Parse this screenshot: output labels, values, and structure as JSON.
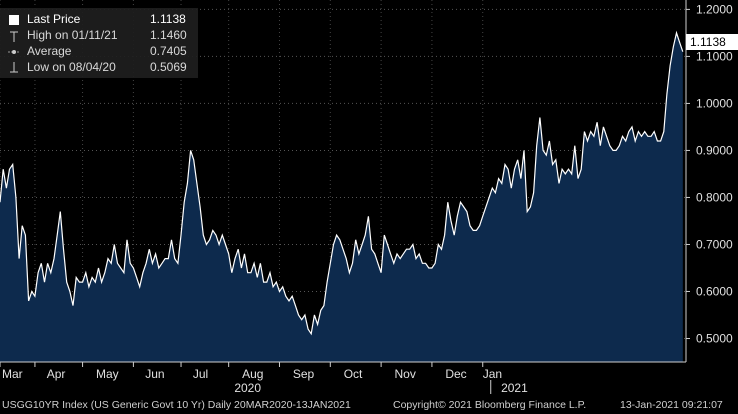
{
  "legend": {
    "items": [
      {
        "label": "Last Price",
        "value": "1.1138",
        "icon": "filled-square-icon"
      },
      {
        "label": "High on 01/11/21",
        "value": "1.1460",
        "icon": "high-marker-icon"
      },
      {
        "label": "Average",
        "value": "0.7405",
        "icon": "average-marker-icon"
      },
      {
        "label": "Low on 08/04/20",
        "value": "0.5069",
        "icon": "low-marker-icon"
      }
    ]
  },
  "last_price_tag": "1.1138",
  "footer": {
    "left": "USGG10YR Index (US Generic Govt 10 Yr)  Daily 20MAR2020-13JAN2021",
    "center": "Copyright© 2021 Bloomberg Finance L.P.",
    "right": "13-Jan-2021 09:21:07"
  },
  "colors": {
    "background": "#000000",
    "area_fill": "#0d2a4d",
    "line": "#ffffff",
    "axis": "#cfcfcf"
  },
  "chart_data": {
    "type": "area",
    "series": [
      {
        "values": [
          [
            0,
            0.79
          ],
          [
            1,
            0.86
          ],
          [
            2,
            0.82
          ],
          [
            3,
            0.86
          ],
          [
            4,
            0.87
          ],
          [
            5,
            0.8
          ],
          [
            6,
            0.67
          ],
          [
            7,
            0.74
          ],
          [
            8,
            0.72
          ],
          [
            9,
            0.58
          ],
          [
            10,
            0.6
          ],
          [
            11,
            0.59
          ],
          [
            12,
            0.64
          ],
          [
            13,
            0.66
          ],
          [
            14,
            0.62
          ],
          [
            15,
            0.66
          ],
          [
            16,
            0.64
          ],
          [
            17,
            0.67
          ],
          [
            18,
            0.72
          ],
          [
            19,
            0.77
          ],
          [
            20,
            0.69
          ],
          [
            21,
            0.62
          ],
          [
            22,
            0.6
          ],
          [
            23,
            0.57
          ],
          [
            24,
            0.63
          ],
          [
            25,
            0.62
          ],
          [
            26,
            0.62
          ],
          [
            27,
            0.64
          ],
          [
            28,
            0.61
          ],
          [
            29,
            0.63
          ],
          [
            30,
            0.62
          ],
          [
            31,
            0.65
          ],
          [
            32,
            0.62
          ],
          [
            33,
            0.64
          ],
          [
            34,
            0.67
          ],
          [
            35,
            0.66
          ],
          [
            36,
            0.7
          ],
          [
            37,
            0.66
          ],
          [
            38,
            0.65
          ],
          [
            39,
            0.64
          ],
          [
            40,
            0.71
          ],
          [
            41,
            0.66
          ],
          [
            42,
            0.65
          ],
          [
            43,
            0.63
          ],
          [
            44,
            0.61
          ],
          [
            45,
            0.64
          ],
          [
            46,
            0.66
          ],
          [
            47,
            0.69
          ],
          [
            48,
            0.66
          ],
          [
            49,
            0.68
          ],
          [
            50,
            0.65
          ],
          [
            51,
            0.66
          ],
          [
            52,
            0.67
          ],
          [
            53,
            0.67
          ],
          [
            54,
            0.71
          ],
          [
            55,
            0.67
          ],
          [
            56,
            0.66
          ],
          [
            57,
            0.72
          ],
          [
            58,
            0.79
          ],
          [
            59,
            0.83
          ],
          [
            60,
            0.9
          ],
          [
            61,
            0.88
          ],
          [
            62,
            0.83
          ],
          [
            63,
            0.78
          ],
          [
            64,
            0.72
          ],
          [
            65,
            0.7
          ],
          [
            66,
            0.71
          ],
          [
            67,
            0.73
          ],
          [
            68,
            0.72
          ],
          [
            69,
            0.7
          ],
          [
            70,
            0.72
          ],
          [
            71,
            0.7
          ],
          [
            72,
            0.68
          ],
          [
            73,
            0.64
          ],
          [
            74,
            0.67
          ],
          [
            75,
            0.69
          ],
          [
            76,
            0.65
          ],
          [
            77,
            0.68
          ],
          [
            78,
            0.64
          ],
          [
            79,
            0.64
          ],
          [
            80,
            0.66
          ],
          [
            81,
            0.63
          ],
          [
            82,
            0.66
          ],
          [
            83,
            0.62
          ],
          [
            84,
            0.62
          ],
          [
            85,
            0.64
          ],
          [
            86,
            0.61
          ],
          [
            87,
            0.62
          ],
          [
            88,
            0.6
          ],
          [
            89,
            0.61
          ],
          [
            90,
            0.59
          ],
          [
            91,
            0.58
          ],
          [
            92,
            0.59
          ],
          [
            93,
            0.57
          ],
          [
            94,
            0.55
          ],
          [
            95,
            0.54
          ],
          [
            96,
            0.55
          ],
          [
            97,
            0.52
          ],
          [
            98,
            0.51
          ],
          [
            99,
            0.55
          ],
          [
            100,
            0.53
          ],
          [
            101,
            0.56
          ],
          [
            102,
            0.57
          ],
          [
            103,
            0.62
          ],
          [
            104,
            0.66
          ],
          [
            105,
            0.7
          ],
          [
            106,
            0.72
          ],
          [
            107,
            0.71
          ],
          [
            108,
            0.69
          ],
          [
            109,
            0.67
          ],
          [
            110,
            0.64
          ],
          [
            111,
            0.66
          ],
          [
            112,
            0.71
          ],
          [
            113,
            0.68
          ],
          [
            114,
            0.7
          ],
          [
            115,
            0.72
          ],
          [
            116,
            0.76
          ],
          [
            117,
            0.69
          ],
          [
            118,
            0.68
          ],
          [
            119,
            0.66
          ],
          [
            120,
            0.64
          ],
          [
            121,
            0.72
          ],
          [
            122,
            0.7
          ],
          [
            123,
            0.68
          ],
          [
            124,
            0.66
          ],
          [
            125,
            0.68
          ],
          [
            126,
            0.67
          ],
          [
            127,
            0.68
          ],
          [
            128,
            0.69
          ],
          [
            129,
            0.69
          ],
          [
            130,
            0.7
          ],
          [
            131,
            0.67
          ],
          [
            132,
            0.68
          ],
          [
            133,
            0.66
          ],
          [
            134,
            0.66
          ],
          [
            135,
            0.65
          ],
          [
            136,
            0.65
          ],
          [
            137,
            0.66
          ],
          [
            138,
            0.7
          ],
          [
            139,
            0.69
          ],
          [
            140,
            0.72
          ],
          [
            141,
            0.79
          ],
          [
            142,
            0.75
          ],
          [
            143,
            0.72
          ],
          [
            144,
            0.76
          ],
          [
            145,
            0.79
          ],
          [
            146,
            0.78
          ],
          [
            147,
            0.77
          ],
          [
            148,
            0.74
          ],
          [
            149,
            0.73
          ],
          [
            150,
            0.73
          ],
          [
            151,
            0.74
          ],
          [
            152,
            0.76
          ],
          [
            153,
            0.78
          ],
          [
            154,
            0.8
          ],
          [
            155,
            0.82
          ],
          [
            156,
            0.81
          ],
          [
            157,
            0.84
          ],
          [
            158,
            0.83
          ],
          [
            159,
            0.87
          ],
          [
            160,
            0.86
          ],
          [
            161,
            0.82
          ],
          [
            162,
            0.86
          ],
          [
            163,
            0.88
          ],
          [
            164,
            0.84
          ],
          [
            165,
            0.9
          ],
          [
            166,
            0.77
          ],
          [
            167,
            0.78
          ],
          [
            168,
            0.81
          ],
          [
            169,
            0.91
          ],
          [
            170,
            0.97
          ],
          [
            171,
            0.9
          ],
          [
            172,
            0.89
          ],
          [
            173,
            0.92
          ],
          [
            174,
            0.87
          ],
          [
            175,
            0.88
          ],
          [
            176,
            0.83
          ],
          [
            177,
            0.86
          ],
          [
            178,
            0.85
          ],
          [
            179,
            0.86
          ],
          [
            180,
            0.85
          ],
          [
            181,
            0.91
          ],
          [
            182,
            0.84
          ],
          [
            183,
            0.86
          ],
          [
            184,
            0.94
          ],
          [
            185,
            0.92
          ],
          [
            186,
            0.94
          ],
          [
            187,
            0.93
          ],
          [
            188,
            0.96
          ],
          [
            189,
            0.91
          ],
          [
            190,
            0.95
          ],
          [
            191,
            0.93
          ],
          [
            192,
            0.91
          ],
          [
            193,
            0.9
          ],
          [
            194,
            0.9
          ],
          [
            195,
            0.91
          ],
          [
            196,
            0.93
          ],
          [
            197,
            0.92
          ],
          [
            198,
            0.94
          ],
          [
            199,
            0.95
          ],
          [
            200,
            0.92
          ],
          [
            201,
            0.94
          ],
          [
            202,
            0.93
          ],
          [
            203,
            0.94
          ],
          [
            204,
            0.93
          ],
          [
            205,
            0.93
          ],
          [
            206,
            0.94
          ],
          [
            207,
            0.92
          ],
          [
            208,
            0.92
          ],
          [
            209,
            0.94
          ],
          [
            210,
            1.02
          ],
          [
            211,
            1.08
          ],
          [
            212,
            1.12
          ],
          [
            213,
            1.15
          ],
          [
            214,
            1.13
          ],
          [
            215,
            1.11
          ]
        ]
      }
    ],
    "ylim": [
      0.45,
      1.22
    ],
    "yticks": [
      0.5,
      0.6,
      0.7,
      0.8,
      0.9,
      1.0,
      1.1,
      1.2
    ],
    "ytick_labels": [
      "0.5000",
      "0.6000",
      "0.7000",
      "0.8000",
      "0.9000",
      "1.0000",
      "1.1000",
      "1.2000"
    ],
    "xlim": [
      0,
      216
    ],
    "xticks": [
      {
        "x": 0,
        "label": "Mar"
      },
      {
        "x": 11,
        "label": "Apr"
      },
      {
        "x": 26,
        "label": "May"
      },
      {
        "x": 42,
        "label": "Jun"
      },
      {
        "x": 57,
        "label": "Jul"
      },
      {
        "x": 72,
        "label": "Aug"
      },
      {
        "x": 88,
        "label": "Sep"
      },
      {
        "x": 104,
        "label": "Oct"
      },
      {
        "x": 120,
        "label": "Nov"
      },
      {
        "x": 136,
        "label": "Dec"
      },
      {
        "x": 152,
        "label": "Jan"
      }
    ],
    "year_labels": [
      {
        "x": 70,
        "label": "2020"
      },
      {
        "x": 154,
        "label": "2021"
      }
    ],
    "grid": true,
    "grid_style": "dotted"
  }
}
